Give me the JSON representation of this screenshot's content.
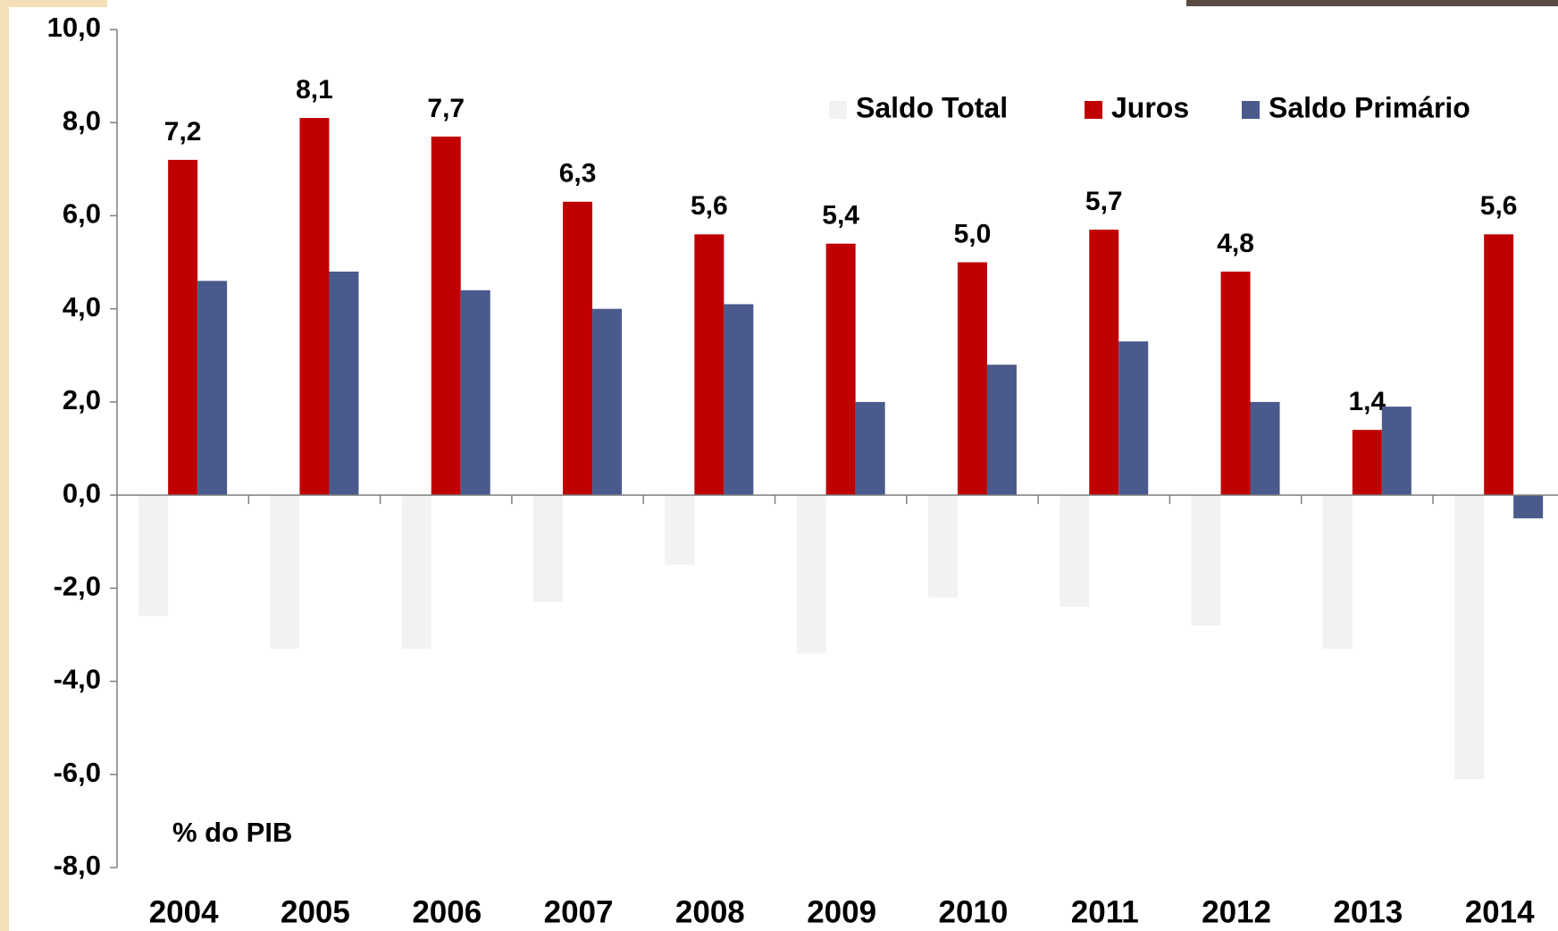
{
  "chart_data": {
    "type": "bar",
    "annotation": "% do PIB",
    "categories": [
      "2004",
      "2005",
      "2006",
      "2007",
      "2008",
      "2009",
      "2010",
      "2011",
      "2012",
      "2013",
      "2014"
    ],
    "series": [
      {
        "name": "Saldo Total",
        "color": "#f2f2f2",
        "values": [
          -2.6,
          -3.3,
          -3.3,
          -2.3,
          -1.5,
          -3.4,
          -2.2,
          -2.4,
          -2.8,
          -3.3,
          -6.1
        ]
      },
      {
        "name": "Juros",
        "color": "#c00000",
        "values": [
          7.2,
          8.1,
          7.7,
          6.3,
          5.6,
          5.4,
          5.0,
          5.7,
          4.8,
          1.4,
          5.6
        ],
        "value_labels": [
          "7,2",
          "8,1",
          "7,7",
          "6,3",
          "5,6",
          "5,4",
          "5,0",
          "5,7",
          "4,8",
          "1,4",
          "5,6"
        ]
      },
      {
        "name": "Saldo Primário",
        "color": "#4a5a8c",
        "values": [
          4.6,
          4.8,
          4.4,
          4.0,
          4.1,
          2.0,
          2.8,
          3.3,
          2.0,
          1.9,
          -0.5
        ]
      }
    ],
    "ylim": [
      -8,
      10
    ],
    "yticks": [
      {
        "value": -8,
        "label": "-8,0"
      },
      {
        "value": -6,
        "label": "-6,0"
      },
      {
        "value": -4,
        "label": "-4,0"
      },
      {
        "value": -2,
        "label": "-2,0"
      },
      {
        "value": 0,
        "label": "0,0"
      },
      {
        "value": 2,
        "label": "2,0"
      },
      {
        "value": 4,
        "label": "4,0"
      },
      {
        "value": 6,
        "label": "6,0"
      },
      {
        "value": 8,
        "label": "8,0"
      },
      {
        "value": 10,
        "label": "10,0"
      }
    ],
    "legend": "top-right"
  }
}
